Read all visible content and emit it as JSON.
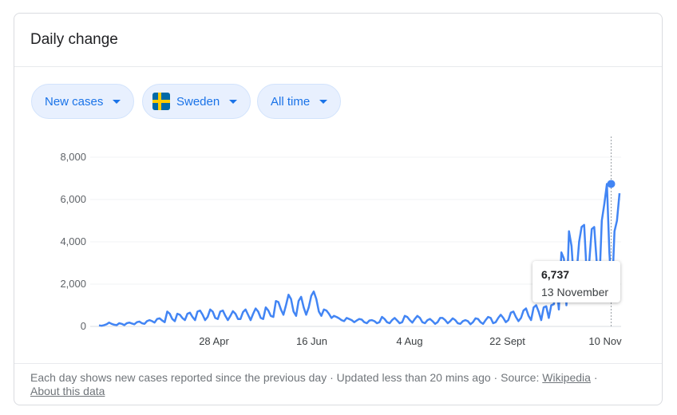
{
  "card": {
    "title": "Daily change"
  },
  "filters": {
    "metric": "New cases",
    "country": "Sweden",
    "range": "All time"
  },
  "tooltip": {
    "value": "6,737",
    "date": "13 November"
  },
  "footer": {
    "note": "Each day shows new cases reported since the previous day · Updated less than 20 mins ago  ·  Source: ",
    "source_link": "Wikipedia",
    "separator": " · ",
    "about_link": "About this data"
  },
  "colors": {
    "line": "#4285f4",
    "chip_bg": "#e8f0fe",
    "chip_text": "#1a73e8"
  },
  "chart_data": {
    "type": "line",
    "ylim": [
      0,
      8000
    ],
    "y_ticks": [
      0,
      2000,
      4000,
      6000,
      8000
    ],
    "y_tick_labels": [
      "0",
      "2,000",
      "4,000",
      "6,000",
      "8,000"
    ],
    "x_ticks": [
      "28 Apr",
      "16 Jun",
      "4 Aug",
      "22 Sept",
      "10 Nov"
    ],
    "x_start_date": "2020-03-01",
    "x_end_date": "2020-11-18",
    "highlight": {
      "date": "2020-11-13",
      "value": 6737
    },
    "series": [
      {
        "name": "New cases",
        "values": [
          50,
          30,
          60,
          100,
          180,
          120,
          80,
          60,
          150,
          120,
          60,
          150,
          180,
          140,
          100,
          200,
          230,
          150,
          120,
          250,
          300,
          250,
          180,
          350,
          380,
          280,
          200,
          700,
          600,
          350,
          250,
          600,
          550,
          400,
          300,
          600,
          650,
          450,
          300,
          700,
          750,
          550,
          300,
          450,
          800,
          700,
          400,
          350,
          700,
          750,
          500,
          300,
          500,
          720,
          600,
          350,
          350,
          680,
          800,
          550,
          300,
          600,
          850,
          700,
          400,
          350,
          900,
          750,
          500,
          450,
          1200,
          1150,
          800,
          550,
          1000,
          1500,
          1300,
          700,
          500,
          1200,
          1400,
          900,
          550,
          900,
          1450,
          1650,
          1300,
          700,
          500,
          800,
          750,
          600,
          400,
          500,
          450,
          380,
          300,
          250,
          400,
          350,
          300,
          200,
          280,
          350,
          320,
          200,
          150,
          280,
          300,
          250,
          150,
          200,
          450,
          350,
          200,
          150,
          300,
          400,
          280,
          150,
          200,
          500,
          450,
          300,
          180,
          350,
          500,
          400,
          200,
          150,
          300,
          350,
          250,
          120,
          200,
          400,
          400,
          300,
          150,
          250,
          380,
          300,
          150,
          120,
          250,
          300,
          250,
          100,
          200,
          380,
          350,
          200,
          120,
          300,
          450,
          400,
          150,
          200,
          400,
          550,
          400,
          200,
          300,
          650,
          700,
          450,
          250,
          400,
          750,
          850,
          500,
          300,
          900,
          1000,
          700,
          300,
          900,
          950,
          400,
          1000,
          1050,
          2000,
          800,
          3500,
          3200,
          1000,
          4500,
          3800,
          2000,
          2500,
          4000,
          4700,
          4800,
          2500,
          3000,
          4600,
          4700,
          3000,
          2000,
          5000,
          5800,
          6737,
          3500,
          1500,
          4500,
          5000,
          6300
        ]
      }
    ]
  }
}
